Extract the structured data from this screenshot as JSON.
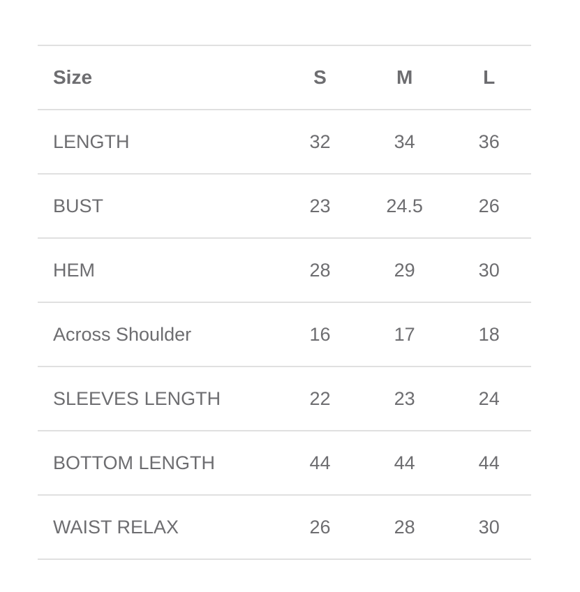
{
  "header": {
    "label": "Size",
    "sizes": [
      "S",
      "M",
      "L"
    ]
  },
  "rows": [
    {
      "label": "LENGTH",
      "values": [
        "32",
        "34",
        "36"
      ]
    },
    {
      "label": "BUST",
      "values": [
        "23",
        "24.5",
        "26"
      ]
    },
    {
      "label": "HEM",
      "values": [
        "28",
        "29",
        "30"
      ]
    },
    {
      "label": "Across Shoulder",
      "values": [
        "16",
        "17",
        "18"
      ]
    },
    {
      "label": "SLEEVES LENGTH",
      "values": [
        "22",
        "23",
        "24"
      ]
    },
    {
      "label": "BOTTOM LENGTH",
      "values": [
        "44",
        "44",
        "44"
      ]
    },
    {
      "label": "WAIST RELAX",
      "values": [
        "26",
        "28",
        "30"
      ]
    }
  ]
}
